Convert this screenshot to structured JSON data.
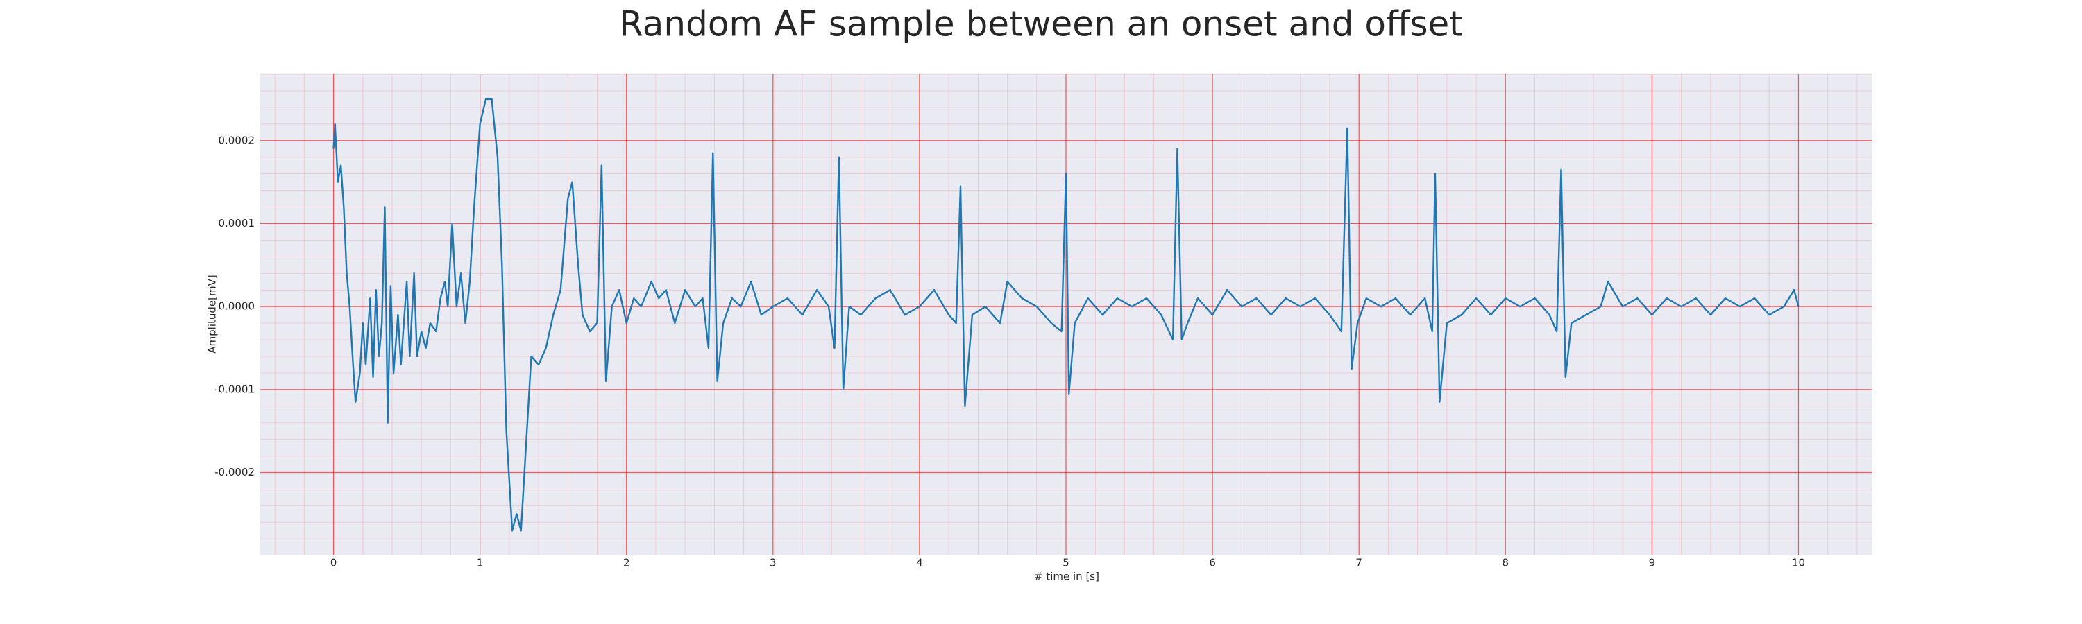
{
  "chart_data": {
    "type": "line",
    "title": "Random AF sample between an onset and offset",
    "x_label": "# time in [s]",
    "y_label": "Amplitude[mV]",
    "xlim": [
      -0.5,
      10.5
    ],
    "ylim": [
      -0.000299,
      0.00028
    ],
    "xticks": [
      0,
      1,
      2,
      3,
      4,
      5,
      6,
      7,
      8,
      9,
      10
    ],
    "yticks": [
      -0.0002,
      -0.0001,
      {
        "value": 0,
        "label": "0.0000"
      },
      0.0001,
      0.0002
    ],
    "grid": true,
    "grid_color": "#ff0000",
    "minor_grid": true,
    "background": "#eaeaf2",
    "series": [
      {
        "color": "#1f77b4",
        "x": [
          0.0,
          0.01,
          0.03,
          0.05,
          0.07,
          0.09,
          0.11,
          0.13,
          0.15,
          0.18,
          0.2,
          0.22,
          0.25,
          0.27,
          0.29,
          0.31,
          0.33,
          0.35,
          0.37,
          0.39,
          0.41,
          0.44,
          0.46,
          0.5,
          0.52,
          0.55,
          0.57,
          0.6,
          0.63,
          0.66,
          0.7,
          0.73,
          0.76,
          0.78,
          0.81,
          0.84,
          0.87,
          0.9,
          0.93,
          0.96,
          1.0,
          1.04,
          1.08,
          1.12,
          1.15,
          1.18,
          1.22,
          1.25,
          1.28,
          1.32,
          1.35,
          1.4,
          1.45,
          1.5,
          1.55,
          1.6,
          1.63,
          1.67,
          1.7,
          1.75,
          1.8,
          1.83,
          1.86,
          1.9,
          1.95,
          2.0,
          2.05,
          2.1,
          2.17,
          2.22,
          2.27,
          2.33,
          2.4,
          2.47,
          2.52,
          2.56,
          2.59,
          2.62,
          2.66,
          2.72,
          2.78,
          2.85,
          2.92,
          3.0,
          3.1,
          3.2,
          3.3,
          3.38,
          3.42,
          3.45,
          3.48,
          3.52,
          3.6,
          3.7,
          3.8,
          3.9,
          4.0,
          4.1,
          4.2,
          4.25,
          4.28,
          4.31,
          4.36,
          4.45,
          4.55,
          4.6,
          4.7,
          4.8,
          4.9,
          4.97,
          5.0,
          5.02,
          5.06,
          5.15,
          5.25,
          5.35,
          5.45,
          5.55,
          5.65,
          5.73,
          5.76,
          5.79,
          5.83,
          5.9,
          6.0,
          6.1,
          6.2,
          6.3,
          6.4,
          6.5,
          6.6,
          6.7,
          6.8,
          6.88,
          6.92,
          6.95,
          6.99,
          7.05,
          7.15,
          7.25,
          7.35,
          7.45,
          7.5,
          7.52,
          7.55,
          7.6,
          7.7,
          7.8,
          7.9,
          8.0,
          8.1,
          8.2,
          8.3,
          8.35,
          8.38,
          8.41,
          8.45,
          8.55,
          8.65,
          8.7,
          8.8,
          8.9,
          9.0,
          9.1,
          9.2,
          9.3,
          9.4,
          9.5,
          9.6,
          9.7,
          9.8,
          9.9,
          9.97,
          10.0
        ],
        "values": [
          0.00019,
          0.00022,
          0.00015,
          0.00017,
          0.00012,
          4e-05,
          0,
          -6e-05,
          -0.000115,
          -8e-05,
          -2e-05,
          -7e-05,
          1e-05,
          -8.5e-05,
          2e-05,
          -6e-05,
          -2e-05,
          0.00012,
          -0.00014,
          2.5e-05,
          -8e-05,
          -1e-05,
          -7e-05,
          3e-05,
          -6e-05,
          4e-05,
          -6e-05,
          -3e-05,
          -5e-05,
          -2e-05,
          -3e-05,
          1e-05,
          3e-05,
          0,
          0.0001,
          0,
          4e-05,
          -2e-05,
          3e-05,
          0.00012,
          0.00022,
          0.00025,
          0.00025,
          0.00018,
          5e-05,
          -0.00015,
          -0.00027,
          -0.00025,
          -0.00027,
          -0.00015,
          -6e-05,
          -7e-05,
          -5e-05,
          -1e-05,
          2e-05,
          0.00013,
          0.00015,
          5e-05,
          -1e-05,
          -3e-05,
          -2e-05,
          0.00017,
          -9e-05,
          0,
          2e-05,
          -2e-05,
          1e-05,
          0,
          3e-05,
          1e-05,
          2e-05,
          -2e-05,
          2e-05,
          0,
          1e-05,
          -5e-05,
          0.000185,
          -9e-05,
          -2e-05,
          1e-05,
          0,
          3e-05,
          -1e-05,
          0,
          1e-05,
          -1e-05,
          2e-05,
          0,
          -5e-05,
          0.00018,
          -0.0001,
          0,
          -1e-05,
          1e-05,
          2e-05,
          -1e-05,
          0,
          2e-05,
          -1e-05,
          -2e-05,
          0.000145,
          -0.00012,
          -1e-05,
          0,
          -2e-05,
          3e-05,
          1e-05,
          0,
          -2e-05,
          -3e-05,
          0.00016,
          -0.000105,
          -2e-05,
          1e-05,
          -1e-05,
          1e-05,
          0,
          1e-05,
          -1e-05,
          -4e-05,
          0.00019,
          -4e-05,
          -2e-05,
          1e-05,
          -1e-05,
          2e-05,
          0,
          1e-05,
          -1e-05,
          1e-05,
          0,
          1e-05,
          -1e-05,
          -3e-05,
          0.000215,
          -7.5e-05,
          -2e-05,
          1e-05,
          0,
          1e-05,
          -1e-05,
          1e-05,
          -3e-05,
          0.00016,
          -0.000115,
          -2e-05,
          -1e-05,
          1e-05,
          -1e-05,
          1e-05,
          0,
          1e-05,
          -1e-05,
          -3e-05,
          0.000165,
          -8.5e-05,
          -2e-05,
          -1e-05,
          0,
          3e-05,
          0,
          1e-05,
          -1e-05,
          1e-05,
          0,
          1e-05,
          -1e-05,
          1e-05,
          0,
          1e-05,
          -1e-05,
          0,
          2e-05,
          0
        ]
      }
    ]
  }
}
